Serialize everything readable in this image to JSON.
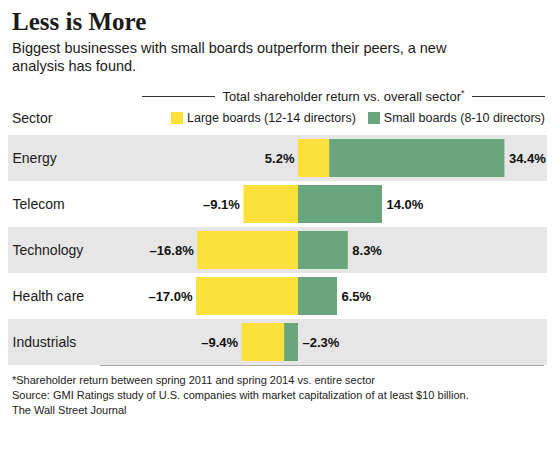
{
  "chart_data": {
    "type": "bar",
    "title": "Less is More",
    "subtitle": "Biggest businesses with small boards outperform their peers, a new analysis has found.",
    "x_label": "Total shareholder return vs. overall sector*",
    "y_label": "Sector",
    "footnote": "*Shareholder return between spring 2011 and spring 2014 vs. entire sector",
    "source": "Source: GMI Ratings study of U.S. companies with market capitalization of at least $10 billion.",
    "credit": "The Wall Street Journal",
    "orientation": "horizontal",
    "data_labels": true,
    "tick_labels": "y",
    "legend": "top",
    "xlim": [
      -33,
      41
    ],
    "categories": [
      "Energy",
      "Telecom",
      "Technology",
      "Health care",
      "Industrials"
    ],
    "series": [
      {
        "name": "Large boards (12-14 directors)",
        "color": "#fde13b",
        "values": [
          5.2,
          -9.1,
          -16.8,
          -17.0,
          -9.4
        ],
        "value_labels": [
          "5.2%",
          "–9.1%",
          "–16.8%",
          "–17.0%",
          "–9.4%"
        ]
      },
      {
        "name": "Small boards (8-10 directors)",
        "color": "#6aa67d",
        "values": [
          34.4,
          14.0,
          8.3,
          6.5,
          -2.3
        ],
        "value_labels": [
          "34.4%",
          "14.0%",
          "8.3%",
          "6.5%",
          "–2.3%"
        ]
      }
    ]
  }
}
